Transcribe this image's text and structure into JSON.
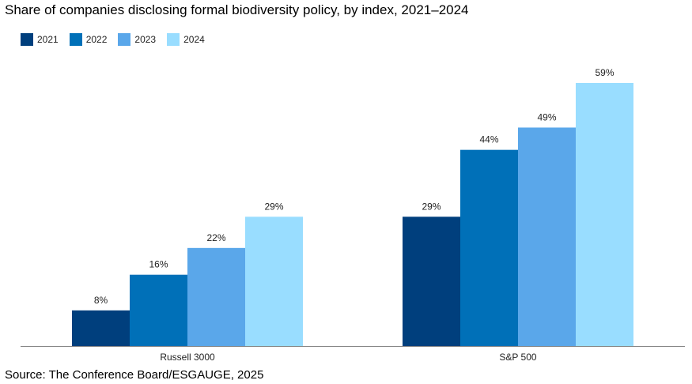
{
  "title": "Share of companies disclosing formal biodiversity policy, by index, 2021–2024",
  "source": "Source: The Conference Board/ESGAUGE, 2025",
  "legend": [
    {
      "label": "2021",
      "color": "#003f7d"
    },
    {
      "label": "2022",
      "color": "#0070b8"
    },
    {
      "label": "2023",
      "color": "#5aa7ea"
    },
    {
      "label": "2024",
      "color": "#99ddff"
    }
  ],
  "chart_data": {
    "type": "bar",
    "title": "Share of companies disclosing formal biodiversity policy, by index, 2021–2024",
    "categories": [
      "Russell 3000",
      "S&P 500"
    ],
    "series": [
      {
        "name": "2021",
        "values": [
          8,
          29
        ],
        "labels": [
          "8%",
          "29%"
        ],
        "color": "#003f7d"
      },
      {
        "name": "2022",
        "values": [
          16,
          44
        ],
        "labels": [
          "16%",
          "44%"
        ],
        "color": "#0070b8"
      },
      {
        "name": "2023",
        "values": [
          22,
          49
        ],
        "labels": [
          "22%",
          "49%"
        ],
        "color": "#5aa7ea"
      },
      {
        "name": "2024",
        "values": [
          29,
          59
        ],
        "labels": [
          "29%",
          "59%"
        ],
        "color": "#99ddff"
      }
    ],
    "ylim": [
      0,
      59
    ],
    "grid": false,
    "legend_position": "top-left"
  }
}
